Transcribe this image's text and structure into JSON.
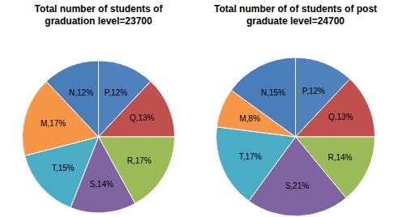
{
  "chart_data": [
    {
      "type": "pie",
      "title": "Total number of students of graduation level=23700",
      "categories": [
        "P",
        "Q",
        "R",
        "S",
        "T",
        "M",
        "N"
      ],
      "values": [
        12,
        13,
        17,
        14,
        15,
        17,
        12
      ],
      "value_labels": [
        "P,12%",
        "Q,13%",
        "R,17%",
        "S,14%",
        "T,15%",
        "M,17%",
        "N,12%"
      ],
      "colors": [
        "#4f81bd",
        "#c0504d",
        "#9bbb59",
        "#8064a2",
        "#4bacc6",
        "#f79646",
        "#4a7ebb"
      ],
      "data_labels": true
    },
    {
      "type": "pie",
      "title": "Total number of of students of post graduate level=24700",
      "categories": [
        "P",
        "Q",
        "R",
        "S",
        "T",
        "M",
        "N"
      ],
      "values": [
        12,
        13,
        14,
        21,
        17,
        8,
        15
      ],
      "value_labels": [
        "P,12%",
        "Q,13%",
        "R,14%",
        "S,21%",
        "T,17%",
        "M,8%",
        "N,15%"
      ],
      "colors": [
        "#4f81bd",
        "#c0504d",
        "#9bbb59",
        "#8064a2",
        "#4bacc6",
        "#f79646",
        "#4a7ebb"
      ],
      "data_labels": true
    }
  ]
}
